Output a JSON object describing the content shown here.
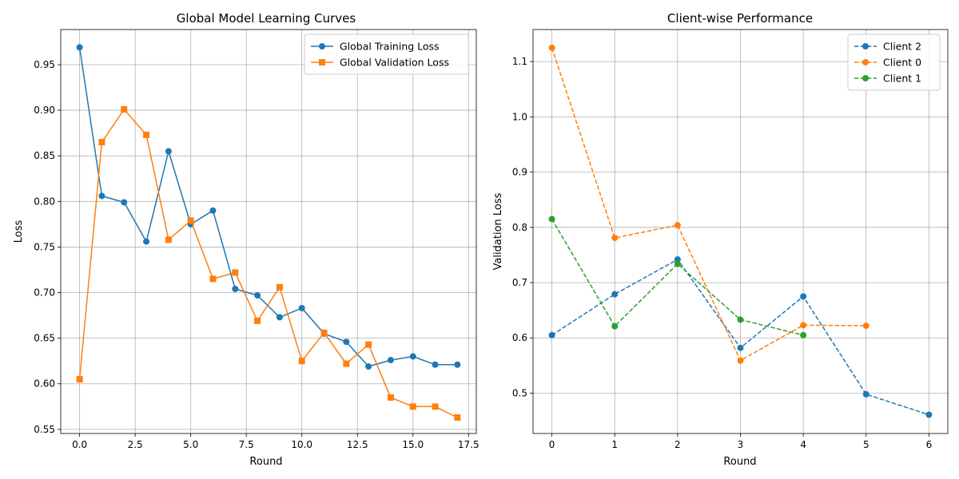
{
  "chart_data": [
    {
      "type": "line",
      "title": "Global Model Learning Curves",
      "xlabel": "Round",
      "ylabel": "Loss",
      "xlim": [
        -0.85,
        17.85
      ],
      "ylim": [
        0.5455,
        0.9885
      ],
      "xticks": [
        0,
        2.5,
        5,
        7.5,
        10,
        12.5,
        15,
        17.5
      ],
      "xtick_labels": [
        "0.0",
        "2.5",
        "5.0",
        "7.5",
        "10.0",
        "12.5",
        "15.0",
        "17.5"
      ],
      "yticks": [
        0.55,
        0.6,
        0.65,
        0.7,
        0.75,
        0.8,
        0.85,
        0.9,
        0.95
      ],
      "ytick_labels": [
        "0.55",
        "0.60",
        "0.65",
        "0.70",
        "0.75",
        "0.80",
        "0.85",
        "0.90",
        "0.95"
      ],
      "grid": true,
      "legend_position": "top-right",
      "series": [
        {
          "name": "Global Training Loss",
          "color": "#1f77b4",
          "marker": "circle",
          "linestyle": "solid",
          "x": [
            0,
            1,
            2,
            3,
            4,
            5,
            6,
            7,
            8,
            9,
            10,
            11,
            12,
            13,
            14,
            15,
            16,
            17
          ],
          "y": [
            0.969,
            0.806,
            0.799,
            0.756,
            0.855,
            0.775,
            0.79,
            0.704,
            0.697,
            0.673,
            0.683,
            0.655,
            0.646,
            0.619,
            0.626,
            0.63,
            0.621,
            0.621
          ]
        },
        {
          "name": "Global Validation Loss",
          "color": "#ff7f0e",
          "marker": "square",
          "linestyle": "solid",
          "x": [
            0,
            1,
            2,
            3,
            4,
            5,
            6,
            7,
            8,
            9,
            10,
            11,
            12,
            13,
            14,
            15,
            16,
            17
          ],
          "y": [
            0.605,
            0.865,
            0.901,
            0.873,
            0.758,
            0.779,
            0.715,
            0.722,
            0.669,
            0.706,
            0.625,
            0.656,
            0.622,
            0.643,
            0.585,
            0.575,
            0.575,
            0.563
          ]
        }
      ]
    },
    {
      "type": "line",
      "title": "Client-wise Performance",
      "xlabel": "Round",
      "ylabel": "Validation Loss",
      "xlim": [
        -0.3,
        6.3
      ],
      "ylim": [
        0.427,
        1.158
      ],
      "xticks": [
        0,
        1,
        2,
        3,
        4,
        5,
        6
      ],
      "xtick_labels": [
        "0",
        "1",
        "2",
        "3",
        "4",
        "5",
        "6"
      ],
      "yticks": [
        0.5,
        0.6,
        0.7,
        0.8,
        0.9,
        1.0,
        1.1
      ],
      "ytick_labels": [
        "0.5",
        "0.6",
        "0.7",
        "0.8",
        "0.9",
        "1.0",
        "1.1"
      ],
      "grid": true,
      "legend_position": "top-right",
      "series": [
        {
          "name": "Client 2",
          "color": "#1f77b4",
          "marker": "circle",
          "linestyle": "dashed",
          "x": [
            0,
            1,
            2,
            3,
            4,
            5,
            6
          ],
          "y": [
            0.605,
            0.679,
            0.742,
            0.582,
            0.675,
            0.498,
            0.461
          ]
        },
        {
          "name": "Client 0",
          "color": "#ff7f0e",
          "marker": "circle",
          "linestyle": "dashed",
          "x": [
            0,
            1,
            2,
            3,
            4,
            5
          ],
          "y": [
            1.125,
            0.781,
            0.804,
            0.559,
            0.623,
            0.622
          ]
        },
        {
          "name": "Client 1",
          "color": "#2ca02c",
          "marker": "circle",
          "linestyle": "dashed",
          "x": [
            0,
            1,
            2,
            3,
            4
          ],
          "y": [
            0.815,
            0.621,
            0.734,
            0.633,
            0.605
          ]
        }
      ]
    }
  ]
}
